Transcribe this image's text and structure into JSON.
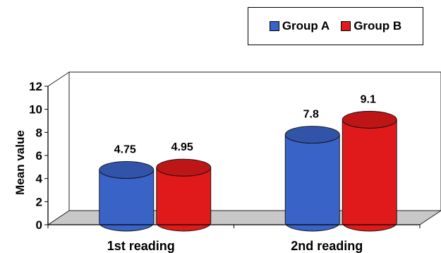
{
  "chart_data": {
    "type": "bar",
    "categories": [
      "1st reading",
      "2nd reading"
    ],
    "series": [
      {
        "name": "Group A",
        "values": [
          4.75,
          7.8
        ],
        "value_labels": [
          "4.75",
          "7.8"
        ],
        "color": "#3a63c7"
      },
      {
        "name": "Group B",
        "values": [
          4.95,
          9.1
        ],
        "value_labels": [
          "4.95",
          "9.1"
        ],
        "color": "#e01a1a"
      }
    ],
    "ylabel": "Mean value",
    "xlabel": "",
    "ylim": [
      0,
      12
    ],
    "yticks": [
      0,
      2,
      4,
      6,
      8,
      10,
      12
    ],
    "legend_position": "top-right",
    "style": "3d-cylinder",
    "grid": false
  }
}
